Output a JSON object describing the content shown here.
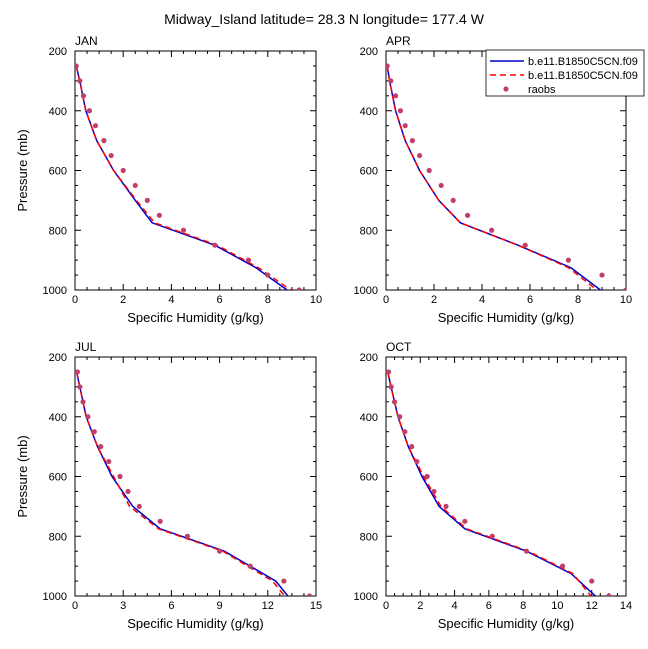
{
  "figure": {
    "title": "Midway_Island  latitude= 28.3 N longitude= 177.4 W"
  },
  "legend": {
    "entries": [
      {
        "label": "b.e11.B1850C5CN.f09",
        "color": "#0000cc",
        "style": "solid"
      },
      {
        "label": "b.e11.B1850C5CN.f09",
        "color": "#ff0000",
        "style": "dashed"
      },
      {
        "label": "raobs",
        "color": "#c0406a",
        "style": "marker"
      }
    ]
  },
  "chart_data": [
    {
      "type": "line",
      "title": "JAN",
      "xlabel": "Specific Humidity (g/kg)",
      "ylabel": "Pressure (mb)",
      "xlim": [
        0,
        10
      ],
      "ylim": [
        1000,
        200
      ],
      "xticks": [
        0,
        2,
        4,
        6,
        8,
        10
      ],
      "yticks": [
        200,
        400,
        600,
        800,
        1000
      ],
      "series": [
        {
          "name": "b.e11.B1850C5CN.f09",
          "points": [
            [
              0.05,
              250
            ],
            [
              0.2,
              300
            ],
            [
              0.45,
              400
            ],
            [
              0.9,
              500
            ],
            [
              1.6,
              600
            ],
            [
              2.5,
              700
            ],
            [
              3.2,
              775
            ],
            [
              5.8,
              850
            ],
            [
              7.5,
              925
            ],
            [
              8.8,
              1000
            ]
          ]
        },
        {
          "name": "b.e11.B1850C5CN.f09",
          "points": [
            [
              0.05,
              250
            ],
            [
              0.2,
              300
            ],
            [
              0.45,
              400
            ],
            [
              0.9,
              500
            ],
            [
              1.6,
              600
            ],
            [
              2.55,
              700
            ],
            [
              3.3,
              775
            ],
            [
              5.9,
              850
            ],
            [
              7.6,
              925
            ],
            [
              8.95,
              1000
            ]
          ]
        },
        {
          "name": "raobs",
          "points": [
            [
              0.05,
              250
            ],
            [
              0.2,
              300
            ],
            [
              0.35,
              350
            ],
            [
              0.6,
              400
            ],
            [
              0.85,
              450
            ],
            [
              1.2,
              500
            ],
            [
              1.5,
              550
            ],
            [
              2.0,
              600
            ],
            [
              2.5,
              650
            ],
            [
              3.0,
              700
            ],
            [
              3.5,
              750
            ],
            [
              4.5,
              800
            ],
            [
              5.8,
              850
            ],
            [
              7.2,
              900
            ],
            [
              8.0,
              950
            ],
            [
              9.3,
              1000
            ]
          ]
        }
      ]
    },
    {
      "type": "line",
      "title": "APR",
      "xlabel": "Specific Humidity (g/kg)",
      "ylabel": "",
      "xlim": [
        0,
        10
      ],
      "ylim": [
        1000,
        200
      ],
      "xticks": [
        0,
        2,
        4,
        6,
        8,
        10
      ],
      "yticks": [
        200,
        400,
        600,
        800,
        1000
      ],
      "series": [
        {
          "name": "b.e11.B1850C5CN.f09",
          "points": [
            [
              0.05,
              250
            ],
            [
              0.15,
              300
            ],
            [
              0.4,
              400
            ],
            [
              0.8,
              500
            ],
            [
              1.4,
              600
            ],
            [
              2.2,
              700
            ],
            [
              3.1,
              775
            ],
            [
              5.5,
              850
            ],
            [
              7.7,
              925
            ],
            [
              9.1,
              1010
            ]
          ]
        },
        {
          "name": "b.e11.B1850C5CN.f09",
          "points": [
            [
              0.05,
              250
            ],
            [
              0.15,
              300
            ],
            [
              0.4,
              400
            ],
            [
              0.8,
              500
            ],
            [
              1.4,
              600
            ],
            [
              2.2,
              700
            ],
            [
              3.1,
              775
            ],
            [
              5.5,
              850
            ],
            [
              7.6,
              925
            ],
            [
              8.95,
              1010
            ]
          ]
        },
        {
          "name": "raobs",
          "points": [
            [
              0.05,
              250
            ],
            [
              0.2,
              300
            ],
            [
              0.4,
              350
            ],
            [
              0.6,
              400
            ],
            [
              0.8,
              450
            ],
            [
              1.1,
              500
            ],
            [
              1.4,
              550
            ],
            [
              1.8,
              600
            ],
            [
              2.3,
              650
            ],
            [
              2.8,
              700
            ],
            [
              3.4,
              750
            ],
            [
              4.4,
              800
            ],
            [
              5.8,
              850
            ],
            [
              7.6,
              900
            ],
            [
              9.0,
              950
            ],
            [
              10.0,
              1000
            ]
          ]
        }
      ]
    },
    {
      "type": "line",
      "title": "JUL",
      "xlabel": "Specific Humidity (g/kg)",
      "ylabel": "Pressure (mb)",
      "xlim": [
        0,
        15
      ],
      "ylim": [
        1000,
        200
      ],
      "xticks": [
        0,
        3,
        6,
        9,
        12,
        15
      ],
      "yticks": [
        200,
        400,
        600,
        800,
        1000
      ],
      "series": [
        {
          "name": "b.e11.B1850C5CN.f09",
          "points": [
            [
              0.1,
              250
            ],
            [
              0.3,
              300
            ],
            [
              0.7,
              400
            ],
            [
              1.4,
              500
            ],
            [
              2.3,
              600
            ],
            [
              3.6,
              700
            ],
            [
              5.3,
              775
            ],
            [
              9.3,
              850
            ],
            [
              12.5,
              950
            ],
            [
              13.4,
              1010
            ]
          ]
        },
        {
          "name": "b.e11.B1850C5CN.f09",
          "points": [
            [
              0.1,
              250
            ],
            [
              0.3,
              300
            ],
            [
              0.7,
              400
            ],
            [
              1.4,
              500
            ],
            [
              2.4,
              600
            ],
            [
              3.4,
              700
            ],
            [
              5.2,
              775
            ],
            [
              9.2,
              850
            ],
            [
              12.3,
              950
            ],
            [
              13.2,
              1010
            ]
          ]
        },
        {
          "name": "raobs",
          "points": [
            [
              0.15,
              250
            ],
            [
              0.3,
              300
            ],
            [
              0.5,
              350
            ],
            [
              0.8,
              400
            ],
            [
              1.2,
              450
            ],
            [
              1.6,
              500
            ],
            [
              2.1,
              550
            ],
            [
              2.8,
              600
            ],
            [
              3.3,
              650
            ],
            [
              4.0,
              700
            ],
            [
              5.3,
              750
            ],
            [
              7.0,
              800
            ],
            [
              9.0,
              850
            ],
            [
              10.9,
              900
            ],
            [
              13.0,
              950
            ],
            [
              14.6,
              1000
            ]
          ]
        }
      ]
    },
    {
      "type": "line",
      "title": "OCT",
      "xlabel": "Specific Humidity (g/kg)",
      "ylabel": "",
      "xlim": [
        0,
        14
      ],
      "ylim": [
        1000,
        200
      ],
      "xticks": [
        0,
        2,
        4,
        6,
        8,
        10,
        12,
        14
      ],
      "yticks": [
        200,
        400,
        600,
        800,
        1000
      ],
      "series": [
        {
          "name": "b.e11.B1850C5CN.f09",
          "points": [
            [
              0.1,
              250
            ],
            [
              0.3,
              300
            ],
            [
              0.7,
              400
            ],
            [
              1.3,
              500
            ],
            [
              2.1,
              600
            ],
            [
              3.1,
              700
            ],
            [
              4.6,
              775
            ],
            [
              8.2,
              850
            ],
            [
              10.8,
              925
            ],
            [
              12.4,
              1010
            ]
          ]
        },
        {
          "name": "b.e11.B1850C5CN.f09",
          "points": [
            [
              0.1,
              250
            ],
            [
              0.3,
              300
            ],
            [
              0.7,
              400
            ],
            [
              1.3,
              500
            ],
            [
              2.2,
              600
            ],
            [
              3.2,
              700
            ],
            [
              4.7,
              775
            ],
            [
              8.3,
              850
            ],
            [
              10.9,
              925
            ],
            [
              12.1,
              1010
            ]
          ]
        },
        {
          "name": "raobs",
          "points": [
            [
              0.15,
              250
            ],
            [
              0.3,
              300
            ],
            [
              0.5,
              350
            ],
            [
              0.8,
              400
            ],
            [
              1.1,
              450
            ],
            [
              1.5,
              500
            ],
            [
              1.8,
              550
            ],
            [
              2.4,
              600
            ],
            [
              2.8,
              650
            ],
            [
              3.5,
              700
            ],
            [
              4.6,
              750
            ],
            [
              6.2,
              800
            ],
            [
              8.2,
              850
            ],
            [
              10.3,
              900
            ],
            [
              12.0,
              950
            ],
            [
              13.0,
              1000
            ]
          ]
        }
      ]
    }
  ]
}
